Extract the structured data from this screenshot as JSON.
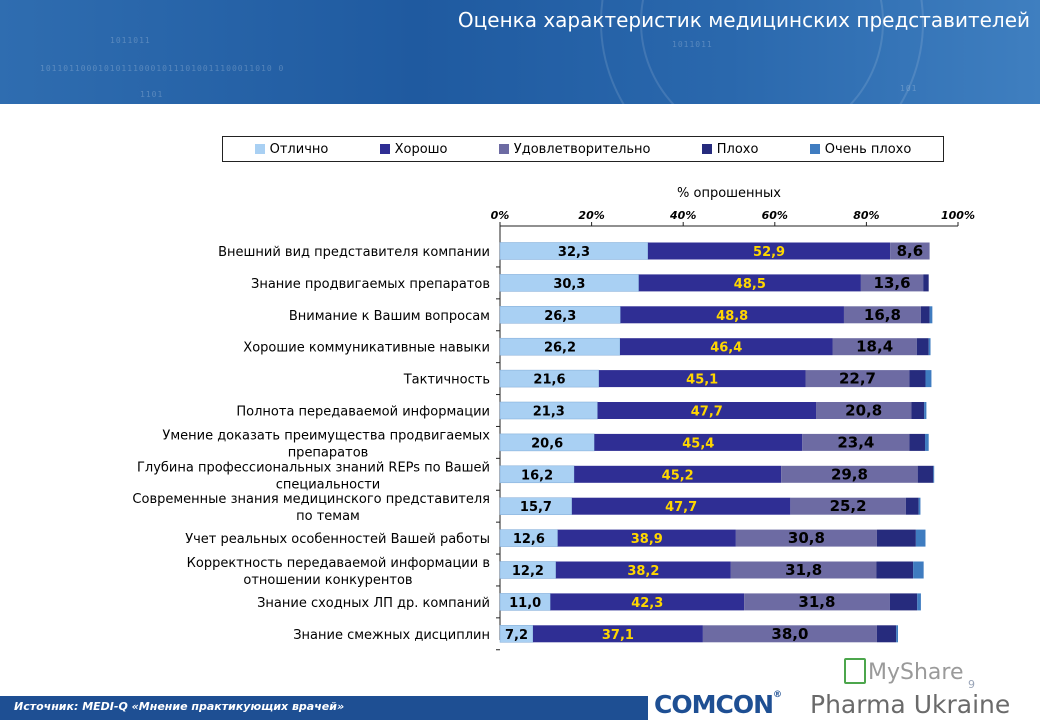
{
  "header": {
    "title": "Оценка характеристик медицинских представителей"
  },
  "legend_colors": {
    "excellent": "#a9d0f3",
    "good": "#2f2e94",
    "satisfactory": "#6d6ba3",
    "bad": "#262b7d",
    "very_bad": "#3f7cc0"
  },
  "chart_data": {
    "type": "bar",
    "orientation": "horizontal",
    "stacked": true,
    "xlabel": "% опрошенных",
    "xlim": [
      0,
      100
    ],
    "xticks": [
      "0%",
      "20%",
      "40%",
      "60%",
      "80%",
      "100%"
    ],
    "legend_position": "top",
    "categories": [
      "Внешний вид представителя компании",
      "Знание продвигаемых препаратов",
      "Внимание к Вашим вопросам",
      "Хорошие коммуникативные навыки",
      "Тактичность",
      "Полнота передаваемой информации",
      "Умение доказать преимущества продвигаемых препаратов",
      "Глубина профессиональных знаний REPs по Вашей специальности",
      "Современные знания медицинского представителя по темам",
      "Учет реальных особенностей Вашей работы",
      "Корректность передаваемой информации в отношении конкурентов",
      "Знание сходных ЛП др. компаний",
      "Знание смежных дисциплин"
    ],
    "series": [
      {
        "name": "Отлично",
        "values": [
          32.3,
          30.3,
          26.3,
          26.2,
          21.6,
          21.3,
          20.6,
          16.2,
          15.7,
          12.6,
          12.2,
          11.0,
          7.2
        ],
        "labels": [
          "32,3",
          "30,3",
          "26,3",
          "26,2",
          "21,6",
          "21,3",
          "20,6",
          "16,2",
          "15,7",
          "12,6",
          "12,2",
          "11,0",
          "7,2"
        ]
      },
      {
        "name": "Хорошо",
        "values": [
          52.9,
          48.5,
          48.8,
          46.4,
          45.1,
          47.7,
          45.4,
          45.2,
          47.7,
          38.9,
          38.2,
          42.3,
          37.1
        ],
        "labels": [
          "52,9",
          "48,5",
          "48,8",
          "46,4",
          "45,1",
          "47,7",
          "45,4",
          "45,2",
          "47,7",
          "38,9",
          "38,2",
          "42,3",
          "37,1"
        ]
      },
      {
        "name": "Удовлетворительно",
        "values": [
          8.6,
          13.6,
          16.8,
          18.4,
          22.7,
          20.8,
          23.4,
          29.8,
          25.2,
          30.8,
          31.8,
          31.8,
          38.0
        ],
        "labels": [
          "8,6",
          "13,6",
          "16,8",
          "18,4",
          "22,7",
          "20,8",
          "23,4",
          "29,8",
          "25,2",
          "30,8",
          "31,8",
          "31,8",
          "38,0"
        ]
      },
      {
        "name": "Плохо",
        "values": [
          0,
          1.2,
          1.9,
          2.6,
          3.5,
          2.8,
          3.4,
          3.4,
          2.8,
          8.5,
          8.0,
          6.0,
          4.2
        ]
      },
      {
        "name": "Очень плохо",
        "values": [
          0,
          0,
          0.6,
          0.4,
          1.3,
          0.5,
          0.8,
          0.2,
          0.4,
          2.1,
          2.3,
          0.8,
          0.4
        ]
      }
    ]
  },
  "footer": {
    "source": "Источник: MEDI-Q «Мнение практикующих врачей»",
    "page_number": "9",
    "brand_comcon": "COMCON",
    "brand_tm": "®",
    "brand_pharma": "Pharma Ukraine",
    "watermark": "MyShare"
  }
}
